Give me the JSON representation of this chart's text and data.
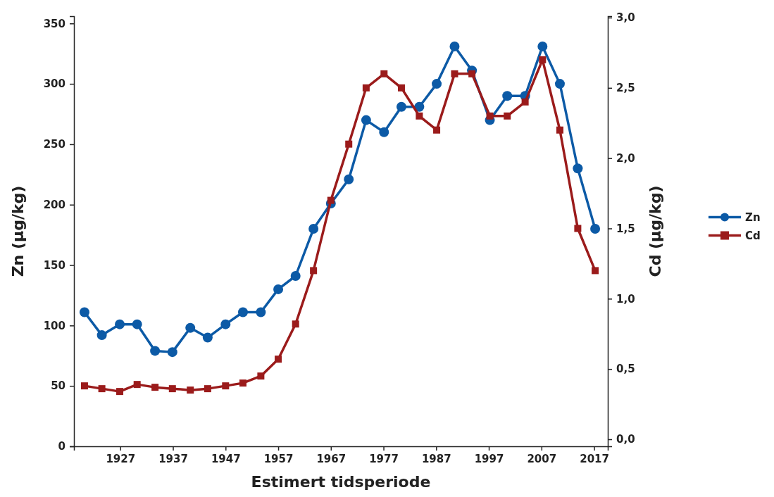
{
  "chart_data": {
    "type": "line",
    "xlabel": "Estimert tidsperiode",
    "ylabel": "Zn (µg/kg)",
    "y2label": "Cd (µg/kg)",
    "x": [
      1920.2,
      1923.5,
      1926.9,
      1930.2,
      1933.6,
      1936.9,
      1940.3,
      1943.6,
      1947.0,
      1950.3,
      1953.7,
      1957.0,
      1960.3,
      1963.7,
      1967.0,
      1970.4,
      1973.7,
      1977.1,
      1980.4,
      1983.8,
      1987.1,
      1990.5,
      1993.8,
      1997.2,
      2000.5,
      2003.9,
      2007.2,
      2010.5,
      2013.9,
      2017.2
    ],
    "series": [
      {
        "name": "Zn",
        "color": "#0c5aa6",
        "marker": "circle",
        "values": [
          111,
          92,
          101,
          101,
          79,
          78,
          98,
          90,
          101,
          111,
          111,
          130,
          141,
          180,
          201,
          221,
          270,
          260,
          281,
          281,
          300,
          331,
          311,
          270,
          290,
          290,
          331,
          300,
          230,
          180
        ]
      },
      {
        "name": "Cd",
        "color": "#9b1b1b",
        "marker": "square",
        "axis": "y2",
        "values": [
          0.38,
          0.36,
          0.34,
          0.39,
          0.37,
          0.36,
          0.35,
          0.36,
          0.38,
          0.4,
          0.45,
          0.57,
          0.82,
          1.2,
          1.7,
          2.1,
          2.5,
          2.6,
          2.5,
          2.3,
          2.2,
          2.6,
          2.6,
          2.3,
          2.3,
          2.4,
          2.7,
          2.2,
          1.5,
          1.2
        ]
      }
    ],
    "xlim": [
      1918.2,
      2019.6
    ],
    "xticks": [
      1927,
      1937,
      1947,
      1957,
      1967,
      1977,
      1987,
      1997,
      2007,
      2017
    ],
    "ylim": [
      0,
      356
    ],
    "yticks": [
      0,
      50,
      100,
      150,
      200,
      250,
      300,
      350
    ],
    "y2lim": [
      -0.05,
      3.01
    ],
    "y2ticks": [
      {
        "value": 0,
        "label": "0,0"
      },
      {
        "value": 0.5,
        "label": "0,5"
      },
      {
        "value": 1,
        "label": "1,0"
      },
      {
        "value": 1.5,
        "label": "1,5"
      },
      {
        "value": 2,
        "label": "2,0"
      },
      {
        "value": 2.5,
        "label": "2,5"
      },
      {
        "value": 3,
        "label": "3,0"
      }
    ],
    "legend": "right",
    "grid": false,
    "line_style": "solid"
  }
}
